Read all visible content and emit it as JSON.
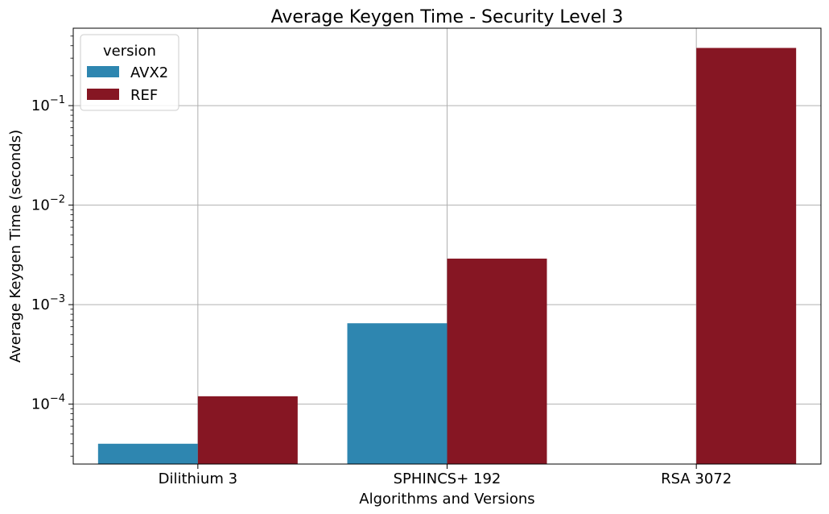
{
  "chart_data": {
    "type": "bar",
    "title": "Average Keygen Time - Security Level 3",
    "xlabel": "Algorithms and Versions",
    "ylabel": "Average Keygen Time (seconds)",
    "yscale": "log",
    "ylim": [
      2.5e-05,
      0.6
    ],
    "yticks": [
      {
        "value": 0.0001,
        "base": "10",
        "exp": "−4"
      },
      {
        "value": 0.001,
        "base": "10",
        "exp": "−3"
      },
      {
        "value": 0.01,
        "base": "10",
        "exp": "−2"
      },
      {
        "value": 0.1,
        "base": "10",
        "exp": "−1"
      }
    ],
    "categories": [
      "Dilithium 3",
      "SPHINCS+ 192",
      "RSA 3072"
    ],
    "series": [
      {
        "name": "AVX2",
        "color": "#2e86b0",
        "values": [
          4e-05,
          0.00065,
          null
        ]
      },
      {
        "name": "REF",
        "color": "#861623",
        "values": [
          0.00012,
          0.0029,
          0.38
        ]
      }
    ],
    "legend": {
      "title": "version",
      "placement": "top-left"
    },
    "grid": true
  }
}
